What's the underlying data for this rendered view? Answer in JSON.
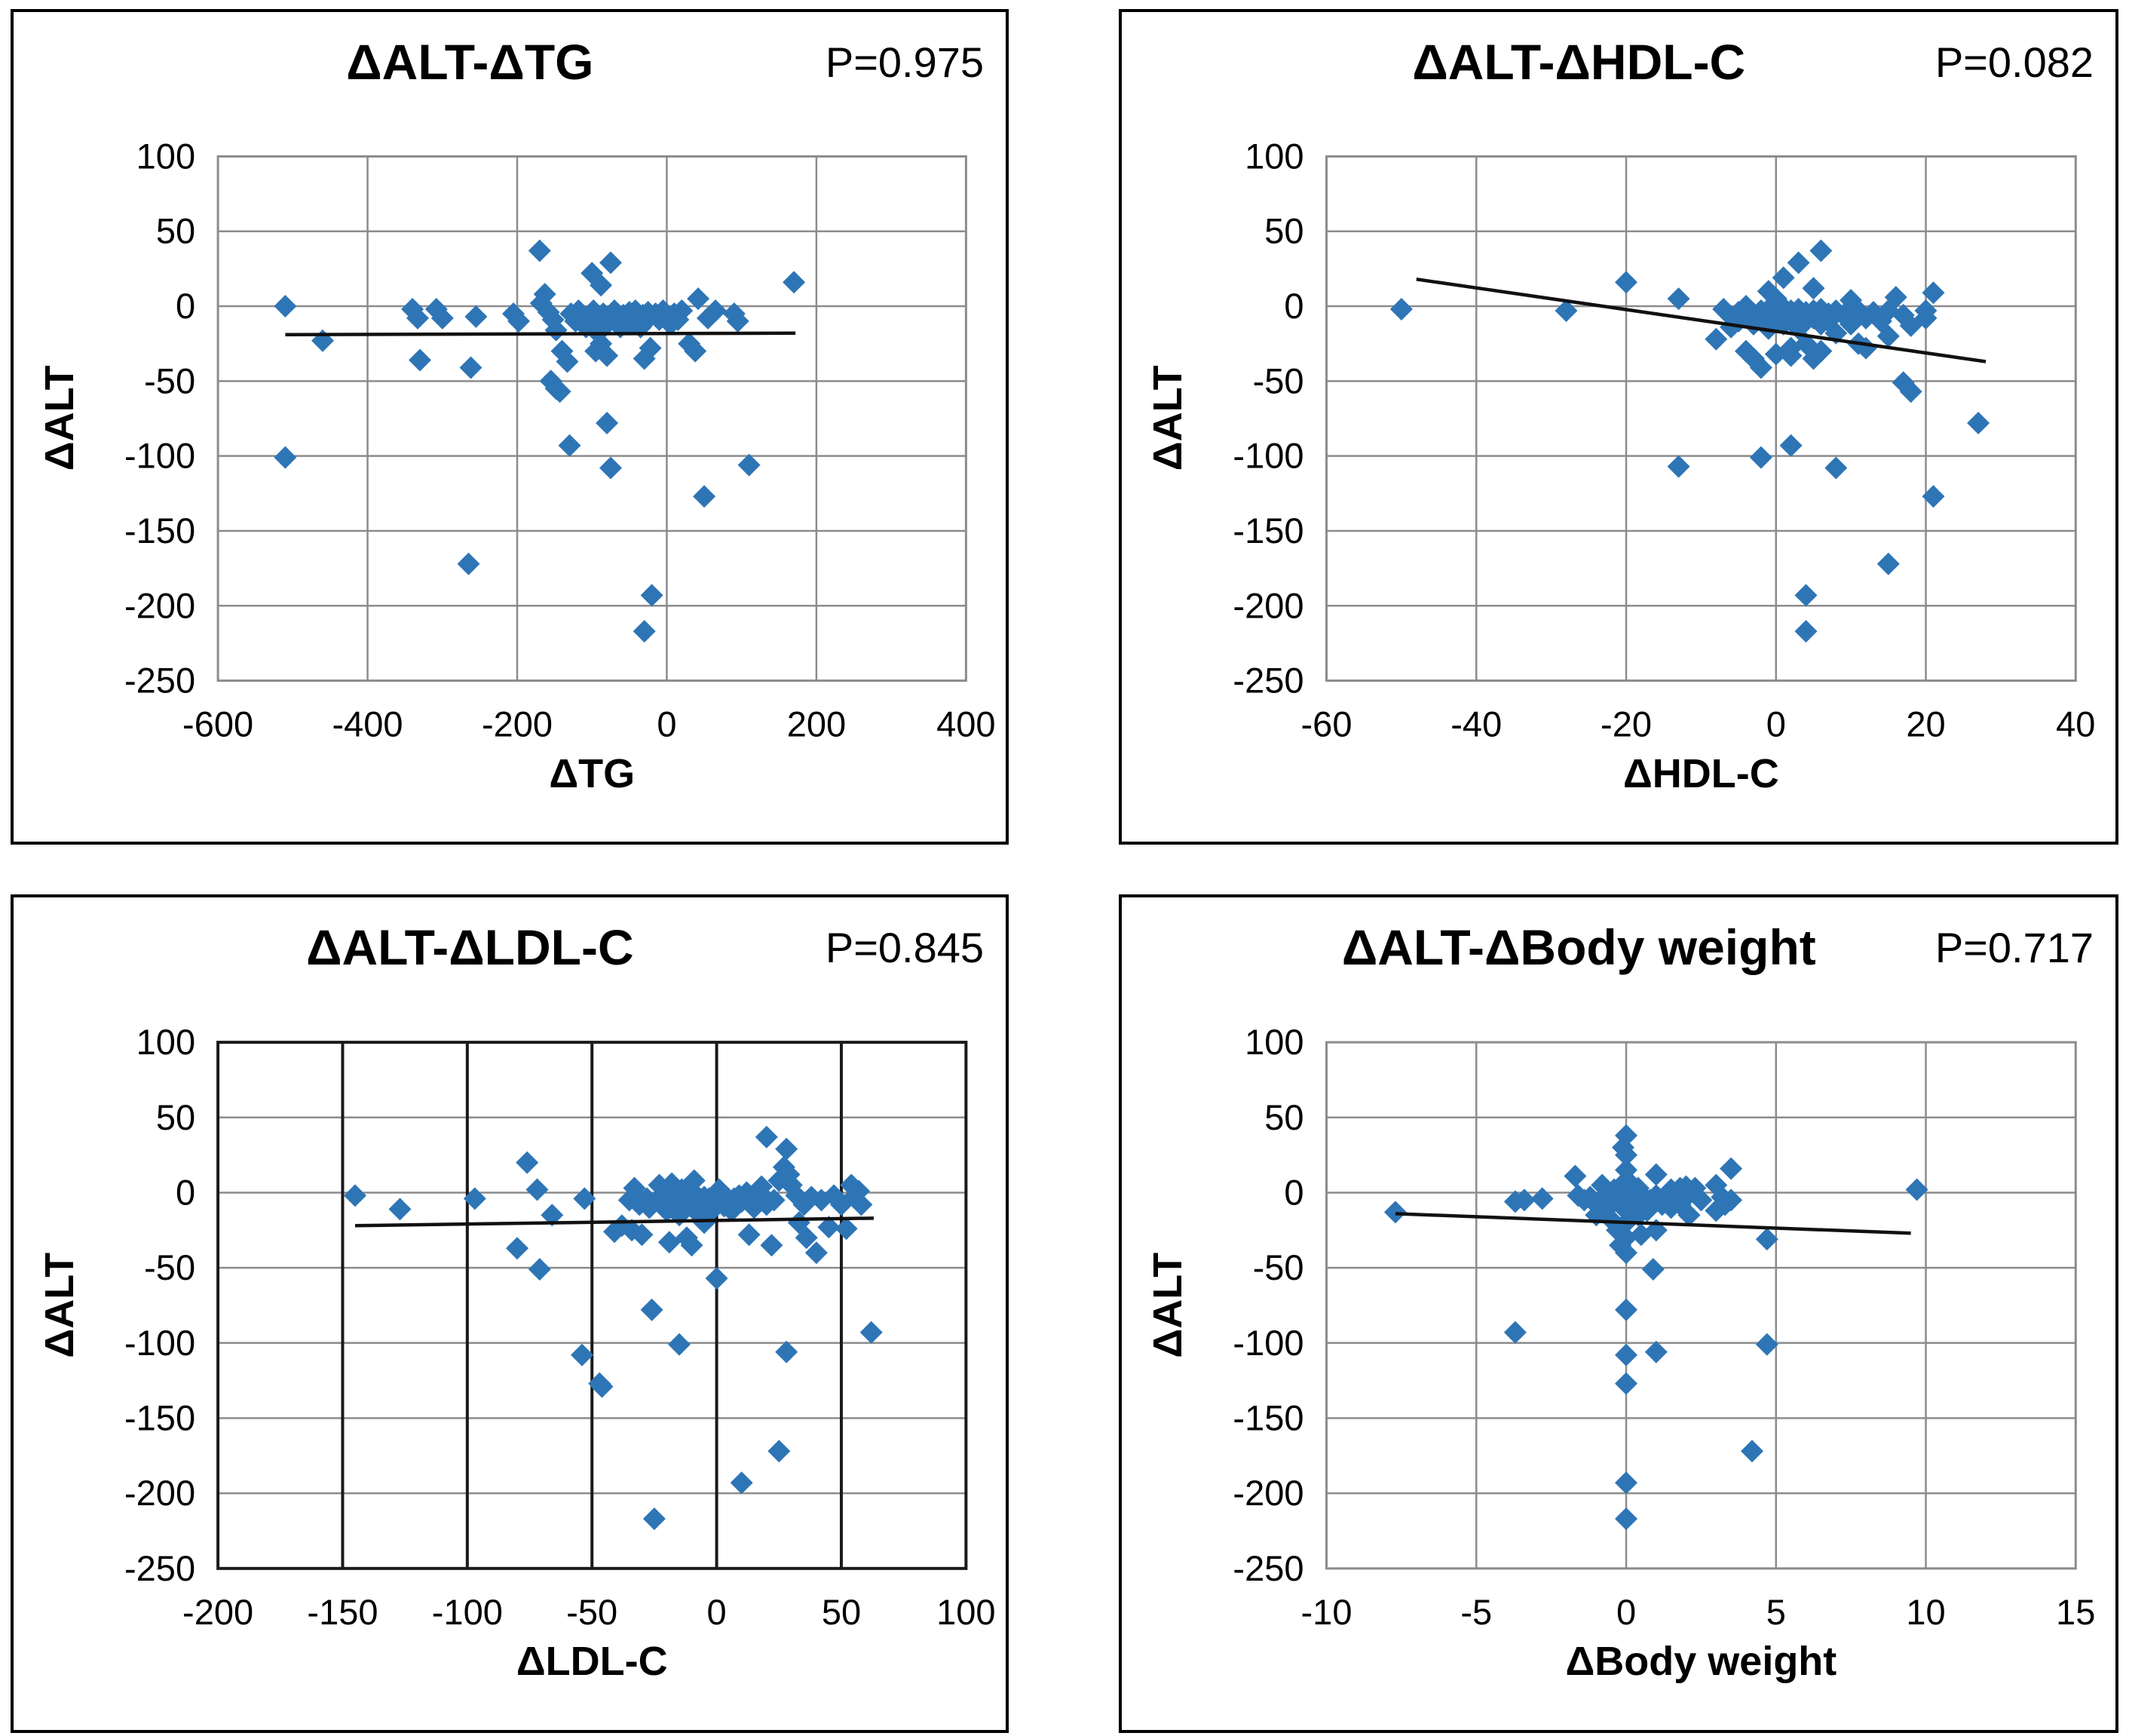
{
  "figure": {
    "background": "#ffffff",
    "point_color": "#2E75B6",
    "grid_color": "#8C8C8C",
    "dark_line_color": "#1a1a1a",
    "trend_line_color": "#111111"
  },
  "chart_data": [
    {
      "type": "scatter",
      "title": "ΔALT-ΔTG",
      "p_label": "P=0.975",
      "xlabel": "ΔTG",
      "ylabel": "ΔALT",
      "xlim": [
        -600,
        400
      ],
      "ylim": [
        -250,
        100
      ],
      "x_ticks": [
        -600,
        -400,
        -200,
        0,
        200,
        400
      ],
      "y_ticks": [
        100,
        50,
        0,
        -50,
        -100,
        -150,
        -200,
        -250
      ],
      "vertical_grid_color": "#8C8C8C",
      "border_color": "#8C8C8C",
      "trend": {
        "x1": -510,
        "y1": -19,
        "x2": 172,
        "y2": -18
      },
      "points": [
        [
          -510,
          0
        ],
        [
          -510,
          -101
        ],
        [
          -460,
          -23
        ],
        [
          -340,
          -2
        ],
        [
          -333,
          -8
        ],
        [
          -330,
          -36
        ],
        [
          -308,
          -2
        ],
        [
          -300,
          -8
        ],
        [
          -265,
          -172
        ],
        [
          -262,
          -41
        ],
        [
          -255,
          -7
        ],
        [
          -205,
          -5
        ],
        [
          -198,
          -10
        ],
        [
          -170,
          37
        ],
        [
          -168,
          2
        ],
        [
          -163,
          8
        ],
        [
          -158,
          -4
        ],
        [
          -152,
          -9
        ],
        [
          -148,
          -16
        ],
        [
          -155,
          -50
        ],
        [
          -148,
          -55
        ],
        [
          -143,
          -57
        ],
        [
          -140,
          -30
        ],
        [
          -133,
          -37
        ],
        [
          -130,
          -93
        ],
        [
          -128,
          -5
        ],
        [
          -122,
          -10
        ],
        [
          -118,
          -3
        ],
        [
          -112,
          -8
        ],
        [
          -108,
          -14
        ],
        [
          -102,
          -7
        ],
        [
          -98,
          -3
        ],
        [
          -95,
          -12
        ],
        [
          -92,
          -18
        ],
        [
          -88,
          -16
        ],
        [
          -85,
          -5
        ],
        [
          -82,
          -10
        ],
        [
          -78,
          -7
        ],
        [
          -100,
          22
        ],
        [
          -88,
          14
        ],
        [
          -75,
          29
        ],
        [
          -95,
          -30
        ],
        [
          -88,
          -25
        ],
        [
          -80,
          -33
        ],
        [
          -80,
          -78
        ],
        [
          -75,
          -108
        ],
        [
          -70,
          -3
        ],
        [
          -66,
          -8
        ],
        [
          -62,
          -14
        ],
        [
          -58,
          -6
        ],
        [
          -55,
          -10
        ],
        [
          -50,
          -4
        ],
        [
          -48,
          -12
        ],
        [
          -45,
          -7
        ],
        [
          -42,
          -3
        ],
        [
          -38,
          -9
        ],
        [
          -35,
          -14
        ],
        [
          -32,
          -6
        ],
        [
          -28,
          -10
        ],
        [
          -25,
          -4
        ],
        [
          -30,
          -35
        ],
        [
          -22,
          -28
        ],
        [
          -30,
          -217
        ],
        [
          -20,
          -193
        ],
        [
          -15,
          -5
        ],
        [
          -10,
          -9
        ],
        [
          -5,
          -3
        ],
        [
          0,
          -7
        ],
        [
          5,
          -12
        ],
        [
          10,
          -5
        ],
        [
          15,
          -9
        ],
        [
          20,
          -3
        ],
        [
          30,
          -25
        ],
        [
          38,
          -30
        ],
        [
          42,
          5
        ],
        [
          55,
          -8
        ],
        [
          65,
          -3
        ],
        [
          50,
          -127
        ],
        [
          90,
          -5
        ],
        [
          95,
          -10
        ],
        [
          110,
          -106
        ],
        [
          170,
          16
        ]
      ]
    },
    {
      "type": "scatter",
      "title": "ΔALT-ΔHDL-C",
      "p_label": "P=0.082",
      "xlabel": "ΔHDL-C",
      "ylabel": "ΔALT",
      "xlim": [
        -60,
        40
      ],
      "ylim": [
        -250,
        100
      ],
      "x_ticks": [
        -60,
        -40,
        -20,
        0,
        20,
        40
      ],
      "y_ticks": [
        100,
        50,
        0,
        -50,
        -100,
        -150,
        -200,
        -250
      ],
      "vertical_grid_color": "#8C8C8C",
      "border_color": "#8C8C8C",
      "trend": {
        "x1": -48,
        "y1": 18,
        "x2": 28,
        "y2": -37
      },
      "points": [
        [
          -50,
          -2
        ],
        [
          -28,
          -3
        ],
        [
          -20,
          16
        ],
        [
          -13,
          5
        ],
        [
          -13,
          -107
        ],
        [
          -8,
          -22
        ],
        [
          -7,
          -2
        ],
        [
          -6,
          -7
        ],
        [
          -6,
          -14
        ],
        [
          -5,
          -4
        ],
        [
          -5,
          -10
        ],
        [
          -4,
          0
        ],
        [
          -4,
          -30
        ],
        [
          -3,
          -5
        ],
        [
          -3,
          -12
        ],
        [
          -3,
          -35
        ],
        [
          -2,
          -3
        ],
        [
          -2,
          -8
        ],
        [
          -2,
          -41
        ],
        [
          -2,
          -101
        ],
        [
          -1,
          10
        ],
        [
          -1,
          -2
        ],
        [
          -1,
          -7
        ],
        [
          -1,
          -15
        ],
        [
          0,
          5
        ],
        [
          0,
          -4
        ],
        [
          0,
          -10
        ],
        [
          0,
          -32
        ],
        [
          1,
          19
        ],
        [
          1,
          -1
        ],
        [
          1,
          -6
        ],
        [
          1,
          -12
        ],
        [
          2,
          -3
        ],
        [
          2,
          -8
        ],
        [
          2,
          -28
        ],
        [
          2,
          -33
        ],
        [
          2,
          -93
        ],
        [
          3,
          29
        ],
        [
          3,
          -2
        ],
        [
          3,
          -7
        ],
        [
          3,
          -15
        ],
        [
          4,
          -4
        ],
        [
          4,
          -10
        ],
        [
          4,
          -25
        ],
        [
          4,
          -193
        ],
        [
          4,
          -217
        ],
        [
          5,
          12
        ],
        [
          5,
          -3
        ],
        [
          5,
          -8
        ],
        [
          5,
          -35
        ],
        [
          6,
          37
        ],
        [
          6,
          -2
        ],
        [
          6,
          -12
        ],
        [
          6,
          -30
        ],
        [
          7,
          -5
        ],
        [
          7,
          -10
        ],
        [
          8,
          -3
        ],
        [
          8,
          -18
        ],
        [
          8,
          -108
        ],
        [
          9,
          -6
        ],
        [
          10,
          4
        ],
        [
          10,
          -12
        ],
        [
          11,
          -3
        ],
        [
          11,
          -25
        ],
        [
          12,
          -8
        ],
        [
          12,
          -28
        ],
        [
          13,
          -4
        ],
        [
          14,
          -10
        ],
        [
          15,
          -3
        ],
        [
          15,
          -20
        ],
        [
          15,
          -172
        ],
        [
          16,
          6
        ],
        [
          17,
          -6
        ],
        [
          17,
          -51
        ],
        [
          18,
          -57
        ],
        [
          18,
          -13
        ],
        [
          20,
          -3
        ],
        [
          20,
          -8
        ],
        [
          21,
          9
        ],
        [
          21,
          -127
        ],
        [
          27,
          -78
        ]
      ]
    },
    {
      "type": "scatter",
      "title": "ΔALT-ΔLDL-C",
      "p_label": "P=0.845",
      "xlabel": "ΔLDL-C",
      "ylabel": "ΔALT",
      "xlim": [
        -200,
        100
      ],
      "ylim": [
        -250,
        100
      ],
      "x_ticks": [
        -200,
        -150,
        -100,
        -50,
        0,
        50,
        100
      ],
      "y_ticks": [
        100,
        50,
        0,
        -50,
        -100,
        -150,
        -200,
        -250
      ],
      "vertical_grid_color": "#1a1a1a",
      "border_color": "#1a1a1a",
      "trend": {
        "x1": -145,
        "y1": -22,
        "x2": 63,
        "y2": -17
      },
      "points": [
        [
          -145,
          -2
        ],
        [
          -127,
          -11
        ],
        [
          -97,
          -4
        ],
        [
          -80,
          -37
        ],
        [
          -76,
          20
        ],
        [
          -72,
          2
        ],
        [
          -71,
          -51
        ],
        [
          -66,
          -15
        ],
        [
          -53,
          -4
        ],
        [
          -54,
          -108
        ],
        [
          -47,
          -127
        ],
        [
          -46,
          -129
        ],
        [
          -41,
          -26
        ],
        [
          -38,
          -22
        ],
        [
          -35,
          -5
        ],
        [
          -34,
          -25
        ],
        [
          -33,
          3
        ],
        [
          -32,
          -2
        ],
        [
          -31,
          -8
        ],
        [
          -30,
          -28
        ],
        [
          -28,
          -4
        ],
        [
          -27,
          -10
        ],
        [
          -26,
          -78
        ],
        [
          -25,
          -217
        ],
        [
          -23,
          5
        ],
        [
          -22,
          -2
        ],
        [
          -21,
          -7
        ],
        [
          -20,
          0
        ],
        [
          -20,
          -12
        ],
        [
          -19,
          -33
        ],
        [
          -18,
          6
        ],
        [
          -17,
          -3
        ],
        [
          -16,
          -8
        ],
        [
          -15,
          -15
        ],
        [
          -15,
          -101
        ],
        [
          -14,
          2
        ],
        [
          -13,
          -5
        ],
        [
          -12,
          -10
        ],
        [
          -12,
          -30
        ],
        [
          -11,
          -3
        ],
        [
          -10,
          -7
        ],
        [
          -10,
          -35
        ],
        [
          -9,
          8
        ],
        [
          -8,
          -2
        ],
        [
          -8,
          -13
        ],
        [
          -7,
          -5
        ],
        [
          -6,
          -10
        ],
        [
          -5,
          -3
        ],
        [
          -5,
          -20
        ],
        [
          -4,
          -8
        ],
        [
          -3,
          -4
        ],
        [
          -2,
          -12
        ],
        [
          -1,
          -6
        ],
        [
          0,
          -57
        ],
        [
          1,
          2
        ],
        [
          2,
          -5
        ],
        [
          3,
          -9
        ],
        [
          4,
          -3
        ],
        [
          5,
          -7
        ],
        [
          6,
          -12
        ],
        [
          7,
          -4
        ],
        [
          8,
          -8
        ],
        [
          9,
          -2
        ],
        [
          10,
          -6
        ],
        [
          10,
          -193
        ],
        [
          12,
          0
        ],
        [
          13,
          -28
        ],
        [
          14,
          -5
        ],
        [
          15,
          -10
        ],
        [
          18,
          4
        ],
        [
          19,
          -3
        ],
        [
          20,
          37
        ],
        [
          20,
          -8
        ],
        [
          22,
          -35
        ],
        [
          23,
          -5
        ],
        [
          25,
          8
        ],
        [
          25,
          -172
        ],
        [
          27,
          17
        ],
        [
          28,
          29
        ],
        [
          28,
          -106
        ],
        [
          29,
          12
        ],
        [
          30,
          5
        ],
        [
          32,
          -2
        ],
        [
          33,
          -20
        ],
        [
          35,
          -8
        ],
        [
          36,
          -30
        ],
        [
          38,
          -3
        ],
        [
          40,
          -40
        ],
        [
          42,
          -5
        ],
        [
          45,
          -23
        ],
        [
          47,
          -2
        ],
        [
          50,
          -8
        ],
        [
          52,
          -24
        ],
        [
          54,
          5
        ],
        [
          55,
          -3
        ],
        [
          57,
          1
        ],
        [
          58,
          -8
        ],
        [
          62,
          -93
        ]
      ]
    },
    {
      "type": "scatter",
      "title": "ΔALT-ΔBody weight",
      "p_label": "P=0.717",
      "xlabel": "ΔBody weight",
      "ylabel": "ΔALT",
      "xlim": [
        -10,
        15
      ],
      "ylim": [
        -250,
        100
      ],
      "x_ticks": [
        -10,
        -5,
        0,
        5,
        10,
        15
      ],
      "y_ticks": [
        100,
        50,
        0,
        -50,
        -100,
        -150,
        -200,
        -250
      ],
      "vertical_grid_color": "#8C8C8C",
      "border_color": "#8C8C8C",
      "trend": {
        "x1": -7.7,
        "y1": -14,
        "x2": 9.5,
        "y2": -27
      },
      "points": [
        [
          -7.7,
          -13
        ],
        [
          -3.7,
          -93
        ],
        [
          -3.7,
          -6
        ],
        [
          -3.4,
          -5
        ],
        [
          -2.8,
          -4
        ],
        [
          -1.7,
          11
        ],
        [
          -1.6,
          -2
        ],
        [
          -1.4,
          -5
        ],
        [
          -1.2,
          -3
        ],
        [
          -1,
          -8
        ],
        [
          -1,
          -15
        ],
        [
          -0.8,
          5
        ],
        [
          -0.7,
          -2
        ],
        [
          -0.6,
          -10
        ],
        [
          -0.5,
          -18
        ],
        [
          -0.4,
          2
        ],
        [
          -0.3,
          -5
        ],
        [
          -0.3,
          -25
        ],
        [
          -0.2,
          -8
        ],
        [
          -0.2,
          -35
        ],
        [
          -0.1,
          30
        ],
        [
          -0.1,
          -3
        ],
        [
          0,
          38
        ],
        [
          0,
          25
        ],
        [
          0,
          15
        ],
        [
          0,
          8
        ],
        [
          0,
          0
        ],
        [
          0,
          -5
        ],
        [
          0,
          -12
        ],
        [
          0,
          -20
        ],
        [
          0,
          -30
        ],
        [
          0,
          -40
        ],
        [
          0,
          -78
        ],
        [
          0,
          -108
        ],
        [
          0,
          -127
        ],
        [
          0,
          -193
        ],
        [
          0,
          -217
        ],
        [
          0.1,
          -2
        ],
        [
          0.2,
          5
        ],
        [
          0.2,
          -10
        ],
        [
          0.3,
          -5
        ],
        [
          0.4,
          3
        ],
        [
          0.4,
          -15
        ],
        [
          0.5,
          -8
        ],
        [
          0.5,
          -28
        ],
        [
          0.6,
          -3
        ],
        [
          0.7,
          -12
        ],
        [
          0.8,
          -5
        ],
        [
          0.9,
          -51
        ],
        [
          1,
          12
        ],
        [
          1,
          -2
        ],
        [
          1,
          -25
        ],
        [
          1,
          -106
        ],
        [
          1.2,
          -8
        ],
        [
          1.3,
          -3
        ],
        [
          1.5,
          2
        ],
        [
          1.5,
          -10
        ],
        [
          1.6,
          -5
        ],
        [
          1.8,
          3
        ],
        [
          1.8,
          -8
        ],
        [
          2,
          4
        ],
        [
          2,
          -3
        ],
        [
          2.1,
          -15
        ],
        [
          2.3,
          3
        ],
        [
          2.5,
          -5
        ],
        [
          3,
          5
        ],
        [
          3,
          -12
        ],
        [
          3.2,
          -3
        ],
        [
          3.3,
          -8
        ],
        [
          3.5,
          16
        ],
        [
          3.5,
          -5
        ],
        [
          4.2,
          -172
        ],
        [
          4.7,
          -101
        ],
        [
          4.7,
          -31
        ],
        [
          9.7,
          2
        ]
      ]
    }
  ]
}
